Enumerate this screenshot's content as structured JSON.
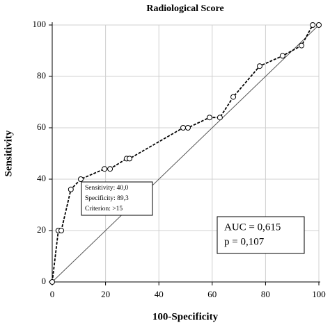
{
  "chart_data": {
    "type": "line",
    "title": "Radiological Score",
    "x_label": "100-Specificity",
    "y_label": "Sensitivity",
    "x": [
      0,
      2.3,
      3.4,
      7,
      10.7,
      19.6,
      21.7,
      27.9,
      29,
      49.1,
      50.9,
      59,
      62.9,
      67.9,
      77.8,
      86.4,
      93.5,
      97.7,
      100
    ],
    "values": [
      0,
      20,
      20,
      36,
      40,
      44,
      44,
      48,
      48,
      60,
      60,
      64,
      64,
      72,
      84,
      88,
      92,
      100,
      100
    ],
    "color": "#000000",
    "xlim": [
      0,
      100
    ],
    "ylim": [
      0,
      100
    ],
    "xticks": [
      0,
      20,
      40,
      60,
      80,
      100
    ],
    "yticks": [
      0,
      20,
      40,
      60,
      80,
      100
    ],
    "grid": true,
    "callout": [
      "Sensitivity: 40,0",
      "Specificity: 89,3",
      "Criterion: >15"
    ],
    "stats": [
      "AUC = 0,615",
      "p = 0,107"
    ]
  }
}
